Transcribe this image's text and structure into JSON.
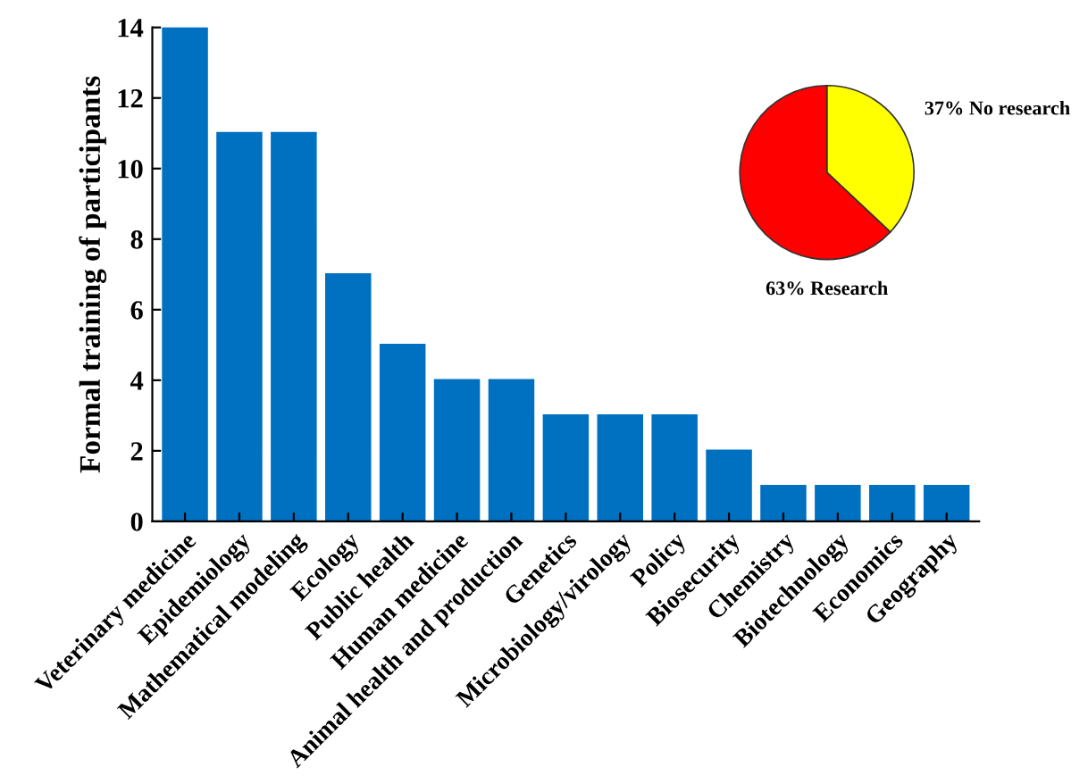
{
  "chart_data": [
    {
      "type": "bar",
      "ylabel": "Formal training of participants",
      "categories": [
        "Veterinary medicine",
        "Epidemiology",
        "Mathematical modeling",
        "Ecology",
        "Public health",
        "Human medicine",
        "Animal health and production",
        "Genetics",
        "Microbiology/virology",
        "Policy",
        "Biosecurity",
        "Chemistry",
        "Biotechnology",
        "Economics",
        "Geography"
      ],
      "values": [
        14,
        11,
        11,
        7,
        5,
        4,
        4,
        3,
        3,
        3,
        2,
        1,
        1,
        1,
        1
      ],
      "color": "#0070c0",
      "ylim": [
        0,
        14
      ],
      "yticks": [
        0,
        2,
        4,
        6,
        8,
        10,
        12,
        14
      ],
      "grid": false
    },
    {
      "type": "pie",
      "categories": [
        "No research",
        "Research"
      ],
      "values": [
        37,
        63
      ],
      "value_labels": [
        "37%",
        "63%"
      ],
      "colors": [
        "#ffff00",
        "#ff0000"
      ]
    }
  ]
}
